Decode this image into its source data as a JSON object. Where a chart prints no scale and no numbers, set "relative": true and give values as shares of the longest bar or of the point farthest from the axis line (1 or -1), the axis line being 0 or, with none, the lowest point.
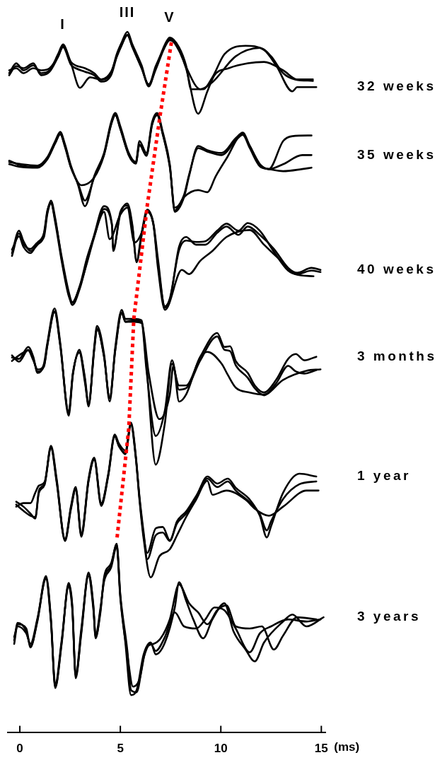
{
  "chart_data": {
    "type": "line",
    "relative": true,
    "xlabel": "(ms)",
    "xlim": [
      -0.6,
      15.2
    ],
    "xticks": [
      0,
      5,
      10,
      15
    ],
    "marker": "none",
    "line_style": "solid",
    "annotations": [
      {
        "text": "I",
        "x": 2.15,
        "y": 0.982
      },
      {
        "text": "III",
        "x": 5.35,
        "y": 1.0
      },
      {
        "text": "V",
        "x": 7.46,
        "y": 0.992
      }
    ],
    "series": [
      {
        "name": "32 weeks",
        "color": "#000000",
        "x": [
          -0.53,
          -0.18,
          0.18,
          0.67,
          1.06,
          1.48,
          1.9,
          2.15,
          2.54,
          2.78,
          3.24,
          3.7,
          4.05,
          4.54,
          4.82,
          5.07,
          5.35,
          5.6,
          6.06,
          6.41,
          6.76,
          7.22,
          7.46,
          7.92,
          8.27,
          8.52,
          9.12,
          9.58,
          10.18,
          11.23,
          12.15,
          12.75,
          13.56,
          13.8,
          14.75
        ],
        "values": [
          0.941,
          0.955,
          0.945,
          0.952,
          0.941,
          0.945,
          0.968,
          0.982,
          0.957,
          0.952,
          0.948,
          0.941,
          0.932,
          0.941,
          0.968,
          0.985,
          1.0,
          0.982,
          0.952,
          0.922,
          0.948,
          0.982,
          0.992,
          0.978,
          0.952,
          0.918,
          0.918,
          0.935,
          0.968,
          0.98,
          0.974,
          0.952,
          0.915,
          0.921,
          0.921
        ]
      },
      {
        "color": "#000000",
        "x": [
          -0.53,
          -0.18,
          0.18,
          0.67,
          1.06,
          1.48,
          1.9,
          2.15,
          2.54,
          2.99,
          3.49,
          4.05,
          4.54,
          4.82,
          5.07,
          5.35,
          5.6,
          6.06,
          6.41,
          6.76,
          7.22,
          7.46,
          7.92,
          8.27,
          8.87,
          9.33,
          9.68,
          10.39,
          11.34,
          12.15,
          13.1,
          13.8,
          14.58
        ],
        "values": [
          0.945,
          0.948,
          0.941,
          0.948,
          0.945,
          0.948,
          0.965,
          0.98,
          0.955,
          0.92,
          0.935,
          0.932,
          0.943,
          0.965,
          0.982,
          0.995,
          0.979,
          0.948,
          0.924,
          0.951,
          0.979,
          0.99,
          0.973,
          0.948,
          0.883,
          0.915,
          0.938,
          0.948,
          0.955,
          0.957,
          0.945,
          0.932,
          0.932
        ]
      },
      {
        "color": "#000000",
        "x": [
          -0.53,
          -0.18,
          0.18,
          0.67,
          1.06,
          1.48,
          1.9,
          2.15,
          2.54,
          2.78,
          3.24,
          3.7,
          4.05,
          4.54,
          4.82,
          5.07,
          5.35,
          5.6,
          6.06,
          6.41,
          6.76,
          7.22,
          7.46,
          7.92,
          8.27,
          8.98,
          9.58,
          10.74,
          11.94,
          12.5,
          13.1,
          13.7,
          14.58
        ],
        "values": [
          0.938,
          0.951,
          0.948,
          0.955,
          0.938,
          0.943,
          0.964,
          0.978,
          0.953,
          0.948,
          0.943,
          0.938,
          0.929,
          0.938,
          0.964,
          0.981,
          0.996,
          0.978,
          0.948,
          0.925,
          0.946,
          0.979,
          0.988,
          0.976,
          0.95,
          0.918,
          0.928,
          0.965,
          0.977,
          0.965,
          0.941,
          0.932,
          0.93
        ]
      },
      {
        "name": "35 weeks",
        "color": "#000000",
        "x": [
          -0.53,
          0.07,
          0.88,
          1.37,
          1.76,
          2.01,
          2.25,
          2.54,
          3.06,
          3.7,
          4.19,
          4.54,
          4.75,
          5.0,
          5.42,
          5.77,
          5.95,
          6.3,
          6.58,
          6.83,
          7.11,
          7.46,
          7.71,
          8.17,
          8.87,
          9.33,
          9.75,
          10.28,
          11.09,
          11.44,
          11.94,
          12.39,
          13.1,
          14.05,
          14.51
        ],
        "values": [
          0.816,
          0.809,
          0.807,
          0.819,
          0.841,
          0.854,
          0.837,
          0.807,
          0.781,
          0.792,
          0.824,
          0.867,
          0.882,
          0.862,
          0.824,
          0.812,
          0.839,
          0.824,
          0.867,
          0.882,
          0.854,
          0.809,
          0.745,
          0.764,
          0.774,
          0.771,
          0.794,
          0.819,
          0.854,
          0.837,
          0.811,
          0.804,
          0.811,
          0.824,
          0.824
        ]
      },
      {
        "color": "#000000",
        "x": [
          -0.53,
          0.07,
          0.88,
          1.37,
          1.76,
          2.01,
          2.25,
          2.54,
          2.89,
          3.24,
          3.7,
          4.19,
          4.54,
          4.75,
          5.0,
          5.42,
          5.77,
          5.95,
          6.3,
          6.58,
          6.83,
          7.11,
          7.46,
          7.71,
          8.17,
          8.42,
          8.87,
          9.33,
          10.04,
          10.74,
          11.09,
          11.44,
          11.94,
          12.39,
          13.1,
          13.56,
          14.51
        ],
        "values": [
          0.814,
          0.811,
          0.809,
          0.821,
          0.844,
          0.857,
          0.839,
          0.809,
          0.782,
          0.751,
          0.794,
          0.827,
          0.871,
          0.884,
          0.865,
          0.827,
          0.814,
          0.844,
          0.827,
          0.871,
          0.884,
          0.857,
          0.811,
          0.743,
          0.764,
          0.794,
          0.837,
          0.831,
          0.827,
          0.848,
          0.856,
          0.837,
          0.811,
          0.804,
          0.844,
          0.851,
          0.852
        ]
      },
      {
        "color": "#000000",
        "x": [
          -0.53,
          0.07,
          0.88,
          1.37,
          1.76,
          2.01,
          2.25,
          2.54,
          2.89,
          3.24,
          3.7,
          4.19,
          4.54,
          4.75,
          5.0,
          5.42,
          5.77,
          5.95,
          6.3,
          6.58,
          6.83,
          7.11,
          7.46,
          7.71,
          8.17,
          8.42,
          8.87,
          9.33,
          10.04,
          10.74,
          11.09,
          11.44,
          11.94,
          12.39,
          13.1,
          14.05,
          14.51
        ],
        "values": [
          0.811,
          0.807,
          0.806,
          0.818,
          0.841,
          0.854,
          0.835,
          0.806,
          0.784,
          0.759,
          0.792,
          0.825,
          0.868,
          0.881,
          0.861,
          0.824,
          0.812,
          0.839,
          0.823,
          0.868,
          0.881,
          0.854,
          0.807,
          0.749,
          0.767,
          0.796,
          0.834,
          0.829,
          0.824,
          0.845,
          0.853,
          0.834,
          0.808,
          0.804,
          0.801,
          0.804,
          0.806
        ]
      },
      {
        "name": "40 weeks",
        "color": "#000000",
        "x": [
          -0.39,
          -0.04,
          0.18,
          0.53,
          0.88,
          1.2,
          1.37,
          1.55,
          1.76,
          2.08,
          2.43,
          2.61,
          2.99,
          3.35,
          3.7,
          4.19,
          4.58,
          4.65,
          5.0,
          5.35,
          5.6,
          5.81,
          6.06,
          6.34,
          6.65,
          6.87,
          7.22,
          7.46,
          7.92,
          8.27,
          8.77,
          9.23,
          9.82,
          10.28,
          10.88,
          11.34,
          11.94,
          12.64,
          13.35,
          13.8,
          14.51,
          14.96
        ],
        "values": [
          0.684,
          0.716,
          0.701,
          0.687,
          0.696,
          0.71,
          0.743,
          0.759,
          0.734,
          0.676,
          0.626,
          0.61,
          0.634,
          0.673,
          0.71,
          0.751,
          0.726,
          0.687,
          0.743,
          0.752,
          0.721,
          0.673,
          0.713,
          0.746,
          0.726,
          0.676,
          0.606,
          0.616,
          0.693,
          0.707,
          0.696,
          0.696,
          0.713,
          0.722,
          0.71,
          0.722,
          0.71,
          0.69,
          0.663,
          0.656,
          0.663,
          0.66
        ]
      },
      {
        "color": "#000000",
        "x": [
          -0.39,
          -0.04,
          0.18,
          0.53,
          0.88,
          1.2,
          1.37,
          1.55,
          1.76,
          2.08,
          2.43,
          2.61,
          2.99,
          3.35,
          3.7,
          4.19,
          4.47,
          5.0,
          5.35,
          5.7,
          6.06,
          6.34,
          6.65,
          6.87,
          7.22,
          8.06,
          8.42,
          8.98,
          9.58,
          10.28,
          11.44,
          12.15,
          12.99,
          13.7,
          14.61
        ],
        "values": [
          0.689,
          0.708,
          0.693,
          0.684,
          0.699,
          0.713,
          0.745,
          0.756,
          0.728,
          0.673,
          0.623,
          0.613,
          0.638,
          0.678,
          0.708,
          0.743,
          0.704,
          0.739,
          0.749,
          0.699,
          0.713,
          0.743,
          0.724,
          0.663,
          0.603,
          0.66,
          0.654,
          0.673,
          0.687,
          0.707,
          0.717,
          0.696,
          0.673,
          0.654,
          0.651
        ]
      },
      {
        "color": "#000000",
        "x": [
          -0.39,
          -0.04,
          0.18,
          0.53,
          0.88,
          1.2,
          1.37,
          1.55,
          1.76,
          2.08,
          2.43,
          2.61,
          2.99,
          3.35,
          3.7,
          4.19,
          4.58,
          4.65,
          5.0,
          5.35,
          5.6,
          5.81,
          6.06,
          6.34,
          6.65,
          6.87,
          7.22,
          7.46,
          7.92,
          8.27,
          8.77,
          9.23,
          9.82,
          10.28,
          10.88,
          11.34,
          11.94,
          12.64,
          13.35,
          13.8,
          14.51,
          14.96
        ],
        "values": [
          0.68,
          0.712,
          0.697,
          0.69,
          0.699,
          0.707,
          0.74,
          0.755,
          0.731,
          0.679,
          0.629,
          0.614,
          0.637,
          0.671,
          0.707,
          0.747,
          0.724,
          0.69,
          0.74,
          0.755,
          0.724,
          0.671,
          0.709,
          0.743,
          0.724,
          0.669,
          0.608,
          0.619,
          0.688,
          0.702,
          0.7,
          0.701,
          0.716,
          0.726,
          0.716,
          0.727,
          0.716,
          0.686,
          0.659,
          0.654,
          0.659,
          0.657
        ]
      },
      {
        "name": "3 months",
        "color": "#000000",
        "x": [
          -0.39,
          -0.04,
          0.42,
          0.67,
          0.88,
          1.2,
          1.37,
          1.73,
          2.01,
          2.43,
          2.64,
          2.96,
          3.24,
          3.42,
          3.7,
          3.84,
          4.19,
          4.47,
          4.75,
          5.07,
          5.25,
          5.67,
          6.06,
          6.3,
          6.76,
          7.22,
          7.57,
          7.92,
          8.27,
          8.98,
          9.82,
          10.18,
          10.46,
          10.74,
          11.34,
          11.69,
          12.15,
          12.75,
          13.35,
          13.73,
          14.15,
          14.75
        ],
        "values": [
          0.535,
          0.533,
          0.55,
          0.536,
          0.513,
          0.526,
          0.556,
          0.605,
          0.556,
          0.452,
          0.51,
          0.546,
          0.503,
          0.465,
          0.55,
          0.58,
          0.54,
          0.472,
          0.55,
          0.603,
          0.59,
          0.59,
          0.588,
          0.523,
          0.382,
          0.442,
          0.526,
          0.495,
          0.495,
          0.536,
          0.57,
          0.55,
          0.551,
          0.53,
          0.513,
          0.495,
          0.485,
          0.503,
          0.533,
          0.54,
          0.531,
          0.536
        ]
      },
      {
        "color": "#000000",
        "x": [
          -0.39,
          -0.04,
          0.42,
          0.67,
          0.88,
          1.2,
          1.37,
          1.73,
          2.01,
          2.43,
          2.64,
          2.96,
          3.24,
          3.42,
          3.7,
          3.84,
          4.19,
          4.47,
          4.75,
          5.07,
          5.25,
          5.67,
          6.06,
          6.41,
          6.94,
          7.46,
          7.64,
          7.92,
          8.27,
          8.98,
          9.33,
          10.04,
          10.35,
          10.74,
          11.44,
          12.15,
          13.1,
          14.26,
          14.96
        ],
        "values": [
          0.53,
          0.538,
          0.545,
          0.531,
          0.518,
          0.523,
          0.553,
          0.601,
          0.553,
          0.457,
          0.513,
          0.543,
          0.499,
          0.469,
          0.546,
          0.576,
          0.536,
          0.477,
          0.546,
          0.599,
          0.586,
          0.588,
          0.585,
          0.513,
          0.447,
          0.482,
          0.523,
          0.472,
          0.482,
          0.536,
          0.543,
          0.526,
          0.51,
          0.492,
          0.485,
          0.482,
          0.503,
          0.516,
          0.518
        ]
      },
      {
        "color": "#000000",
        "x": [
          -0.39,
          -0.04,
          0.42,
          0.67,
          0.88,
          1.2,
          1.37,
          1.73,
          2.01,
          2.43,
          2.64,
          2.96,
          3.24,
          3.42,
          3.7,
          3.84,
          4.19,
          4.47,
          4.75,
          5.07,
          5.25,
          5.67,
          6.06,
          6.3,
          6.76,
          7.22,
          7.57,
          7.92,
          8.27,
          8.98,
          9.82,
          10.18,
          10.46,
          10.74,
          11.34,
          11.69,
          12.15,
          12.75,
          13.35,
          13.73,
          14.15,
          14.75
        ],
        "values": [
          0.538,
          0.529,
          0.546,
          0.533,
          0.515,
          0.522,
          0.552,
          0.6,
          0.552,
          0.456,
          0.512,
          0.542,
          0.506,
          0.468,
          0.546,
          0.576,
          0.536,
          0.477,
          0.546,
          0.599,
          0.586,
          0.586,
          0.584,
          0.517,
          0.423,
          0.46,
          0.531,
          0.489,
          0.491,
          0.531,
          0.565,
          0.546,
          0.544,
          0.524,
          0.506,
          0.491,
          0.481,
          0.498,
          0.523,
          0.515,
          0.512,
          0.517
        ]
      },
      {
        "name": "1 year",
        "color": "#000000",
        "x": [
          -0.18,
          0.18,
          0.53,
          0.77,
          0.95,
          1.23,
          1.55,
          1.83,
          2.25,
          2.54,
          2.78,
          3.06,
          3.42,
          3.7,
          4.05,
          4.4,
          4.72,
          4.93,
          5.25,
          5.53,
          5.77,
          5.95,
          6.16,
          6.34,
          6.76,
          7.11,
          7.46,
          7.82,
          8.27,
          8.77,
          9.33,
          9.82,
          10.35,
          10.74,
          11.44,
          11.94,
          12.29,
          12.5,
          13.1,
          13.91,
          14.75
        ],
        "values": [
          0.329,
          0.322,
          0.312,
          0.305,
          0.345,
          0.355,
          0.409,
          0.362,
          0.274,
          0.322,
          0.35,
          0.281,
          0.362,
          0.392,
          0.325,
          0.369,
          0.425,
          0.412,
          0.402,
          0.442,
          0.395,
          0.335,
          0.281,
          0.256,
          0.291,
          0.293,
          0.274,
          0.298,
          0.312,
          0.335,
          0.365,
          0.355,
          0.362,
          0.349,
          0.332,
          0.309,
          0.278,
          0.294,
          0.342,
          0.369,
          0.365
        ]
      },
      {
        "color": "#000000",
        "x": [
          -0.18,
          0.18,
          0.53,
          0.77,
          0.95,
          1.23,
          1.55,
          1.83,
          2.25,
          2.54,
          2.78,
          3.06,
          3.42,
          3.7,
          4.05,
          4.4,
          4.72,
          4.93,
          5.25,
          5.53,
          5.77,
          5.95,
          6.16,
          6.51,
          6.94,
          7.46,
          7.82,
          8.27,
          8.77,
          9.33,
          9.58,
          10.28,
          11.23,
          11.69,
          12.39,
          13.1,
          14.26,
          14.86
        ],
        "values": [
          0.322,
          0.327,
          0.327,
          0.342,
          0.352,
          0.357,
          0.406,
          0.357,
          0.276,
          0.32,
          0.347,
          0.284,
          0.359,
          0.39,
          0.327,
          0.367,
          0.422,
          0.409,
          0.397,
          0.439,
          0.392,
          0.332,
          0.276,
          0.221,
          0.251,
          0.261,
          0.281,
          0.307,
          0.332,
          0.359,
          0.339,
          0.345,
          0.332,
          0.319,
          0.309,
          0.322,
          0.345,
          0.345
        ]
      },
      {
        "color": "#000000",
        "x": [
          -0.18,
          0.18,
          0.53,
          0.77,
          0.95,
          1.23,
          1.55,
          1.83,
          2.25,
          2.54,
          2.78,
          3.06,
          3.42,
          3.7,
          4.05,
          4.4,
          4.72,
          4.93,
          5.25,
          5.53,
          5.77,
          5.95,
          6.16,
          6.34,
          6.76,
          7.11,
          7.46,
          7.82,
          8.27,
          8.77,
          9.33,
          9.82,
          10.35,
          10.74,
          11.44,
          11.94,
          12.29,
          12.5,
          13.1,
          13.91,
          14.75
        ],
        "values": [
          0.325,
          0.316,
          0.309,
          0.307,
          0.342,
          0.353,
          0.406,
          0.359,
          0.273,
          0.318,
          0.347,
          0.279,
          0.359,
          0.389,
          0.323,
          0.366,
          0.423,
          0.408,
          0.399,
          0.439,
          0.392,
          0.337,
          0.285,
          0.247,
          0.281,
          0.285,
          0.273,
          0.301,
          0.315,
          0.337,
          0.362,
          0.35,
          0.358,
          0.345,
          0.328,
          0.311,
          0.288,
          0.301,
          0.333,
          0.354,
          0.358
        ]
      },
      {
        "name": "3 years",
        "color": "#000000",
        "x": [
          -0.28,
          -0.11,
          0.32,
          0.53,
          0.88,
          1.3,
          1.55,
          1.76,
          2.08,
          2.43,
          2.61,
          2.78,
          3.06,
          3.42,
          3.66,
          3.77,
          4.01,
          4.19,
          4.54,
          4.82,
          5.0,
          5.25,
          5.53,
          5.81,
          6.16,
          6.51,
          6.76,
          7.22,
          7.71,
          7.92,
          8.27,
          8.63,
          9.12,
          9.58,
          10.18,
          10.63,
          11.23,
          11.69,
          12.15,
          13.1,
          13.56,
          14.26,
          15.11
        ],
        "values": [
          0.126,
          0.154,
          0.148,
          0.121,
          0.161,
          0.223,
          0.161,
          0.063,
          0.128,
          0.211,
          0.178,
          0.077,
          0.144,
          0.228,
          0.178,
          0.134,
          0.174,
          0.218,
          0.238,
          0.269,
          0.194,
          0.128,
          0.053,
          0.06,
          0.111,
          0.128,
          0.111,
          0.128,
          0.178,
          0.214,
          0.188,
          0.161,
          0.134,
          0.161,
          0.184,
          0.144,
          0.118,
          0.101,
          0.128,
          0.158,
          0.168,
          0.151,
          0.164
        ]
      },
      {
        "color": "#000000",
        "x": [
          -0.28,
          -0.11,
          0.32,
          0.53,
          0.88,
          1.3,
          1.55,
          1.76,
          2.08,
          2.43,
          2.61,
          2.78,
          3.06,
          3.42,
          3.66,
          3.77,
          4.01,
          4.19,
          4.54,
          4.82,
          5.0,
          5.35,
          5.63,
          5.95,
          6.3,
          6.65,
          7.01,
          7.46,
          7.92,
          8.42,
          8.87,
          9.33,
          9.82,
          10.28,
          10.74,
          11.44,
          12.04,
          12.64,
          13.1,
          13.8,
          14.75
        ],
        "values": [
          0.136,
          0.151,
          0.141,
          0.126,
          0.163,
          0.219,
          0.156,
          0.068,
          0.131,
          0.208,
          0.175,
          0.082,
          0.148,
          0.223,
          0.175,
          0.138,
          0.177,
          0.215,
          0.235,
          0.265,
          0.191,
          0.111,
          0.065,
          0.075,
          0.121,
          0.126,
          0.134,
          0.161,
          0.211,
          0.184,
          0.171,
          0.154,
          0.174,
          0.181,
          0.151,
          0.148,
          0.151,
          0.118,
          0.138,
          0.164,
          0.161
        ]
      },
      {
        "color": "#000000",
        "x": [
          -0.28,
          -0.11,
          0.32,
          0.53,
          0.88,
          1.3,
          1.55,
          1.76,
          2.08,
          2.43,
          2.61,
          2.78,
          3.06,
          3.42,
          3.66,
          3.77,
          4.01,
          4.19,
          4.54,
          4.82,
          5.0,
          5.35,
          5.53,
          5.81,
          6.16,
          6.51,
          6.76,
          7.22,
          7.71,
          8.17,
          8.77,
          9.23,
          9.68,
          10.18,
          10.74,
          11.44,
          11.94,
          12.5,
          13.35,
          14.26,
          14.96
        ],
        "values": [
          0.131,
          0.156,
          0.144,
          0.123,
          0.159,
          0.221,
          0.159,
          0.065,
          0.126,
          0.213,
          0.181,
          0.08,
          0.141,
          0.226,
          0.181,
          0.136,
          0.171,
          0.221,
          0.241,
          0.267,
          0.196,
          0.116,
          0.06,
          0.057,
          0.106,
          0.126,
          0.116,
          0.136,
          0.171,
          0.151,
          0.148,
          0.161,
          0.178,
          0.174,
          0.148,
          0.114,
          0.141,
          0.151,
          0.161,
          0.158,
          0.161
        ]
      },
      {
        "color": "#ff0000",
        "line_style": "dotted",
        "x": [
          7.54,
          6.97,
          6.34,
          5.67,
          5.42,
          4.82
        ],
        "values": [
          0.985,
          0.879,
          0.752,
          0.59,
          0.434,
          0.273
        ]
      }
    ]
  }
}
